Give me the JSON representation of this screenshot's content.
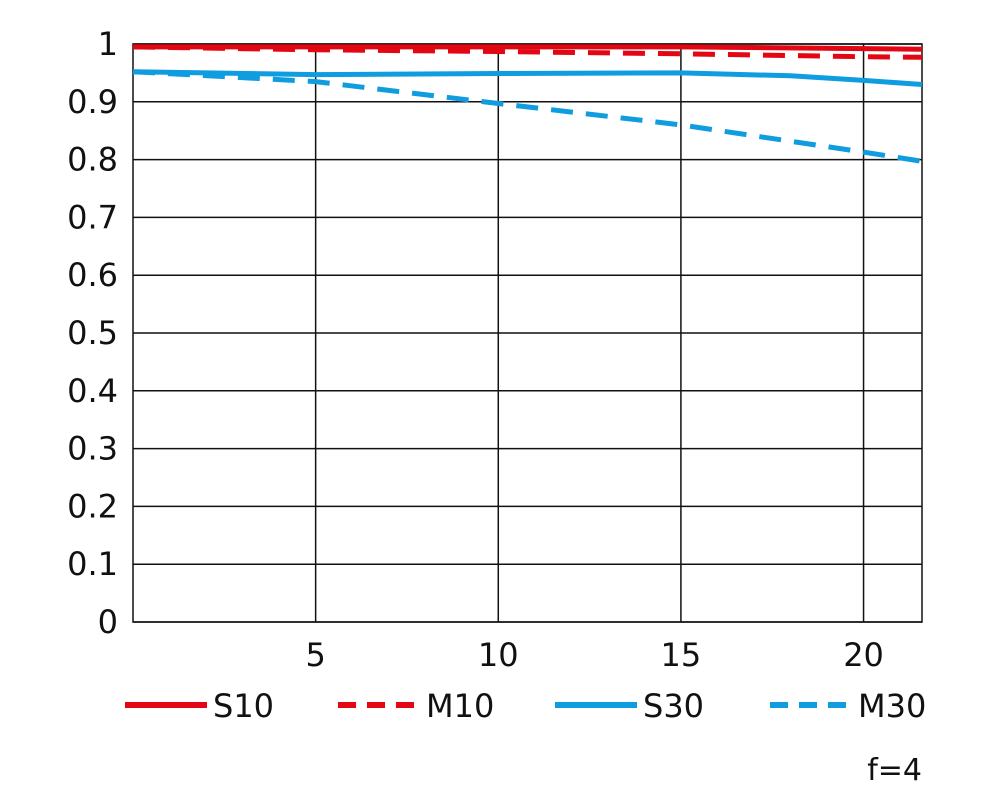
{
  "chart_data": {
    "type": "line",
    "xlim": [
      0,
      21.6
    ],
    "ylim": [
      0,
      1
    ],
    "x_ticks": [
      5,
      10,
      15,
      20
    ],
    "y_ticks": [
      0,
      0.1,
      0.2,
      0.3,
      0.4,
      0.5,
      0.6,
      0.7,
      0.8,
      0.9,
      1
    ],
    "y_tick_labels": [
      "0",
      "0.1",
      "0.2",
      "0.3",
      "0.4",
      "0.5",
      "0.6",
      "0.7",
      "0.8",
      "0.9",
      "1"
    ],
    "x_tick_labels": [
      "5",
      "10",
      "15",
      "20"
    ],
    "grid": true,
    "legend_position": "bottom",
    "annotation": "f=4",
    "series": [
      {
        "name": "S10",
        "color": "#e30613",
        "dash": "solid",
        "x": [
          0,
          5,
          10,
          15,
          20,
          21.6
        ],
        "y": [
          0.995,
          0.995,
          0.995,
          0.995,
          0.992,
          0.991
        ]
      },
      {
        "name": "M10",
        "color": "#e30613",
        "dash": "dashed",
        "x": [
          0,
          5,
          10,
          15,
          20,
          21.6
        ],
        "y": [
          0.995,
          0.99,
          0.987,
          0.983,
          0.978,
          0.977
        ]
      },
      {
        "name": "S30",
        "color": "#0f9de0",
        "dash": "solid",
        "x": [
          0,
          5,
          10,
          15,
          18,
          20,
          21.6
        ],
        "y": [
          0.952,
          0.947,
          0.949,
          0.95,
          0.945,
          0.937,
          0.93
        ]
      },
      {
        "name": "M30",
        "color": "#0f9de0",
        "dash": "dashed",
        "x": [
          0,
          5,
          10,
          15,
          20,
          21.6
        ],
        "y": [
          0.952,
          0.935,
          0.897,
          0.86,
          0.813,
          0.797
        ]
      }
    ]
  }
}
